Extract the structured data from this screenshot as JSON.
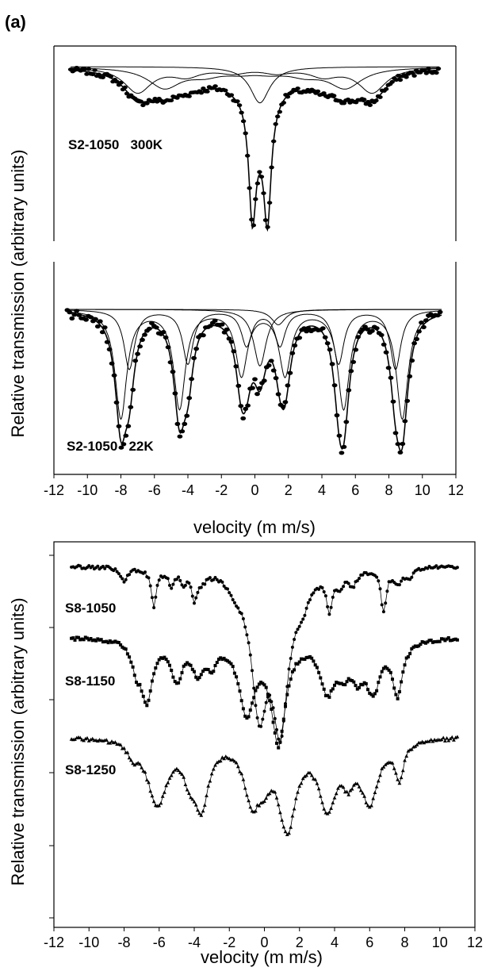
{
  "figure_label": "(a)",
  "chart_data": [
    {
      "id": "top",
      "type": "scatter",
      "ylabel": "Relative transmission (arbitrary units)",
      "xlabel": "velocity (m m/s)",
      "xlim": [
        -12,
        12
      ],
      "xticks": [
        -12,
        -10,
        -8,
        -6,
        -4,
        -2,
        0,
        2,
        4,
        6,
        8,
        10,
        12
      ],
      "yticks_labeled": false,
      "subplots": [
        {
          "id": "300K",
          "label": "S2-1050   300K",
          "label_pos": "left",
          "baseline": 1.0,
          "fit": "doublet (center 0.30, splitting 0.90, width 0.26, depth 0.155) + two broad sextets + narrow center singlet",
          "series": [
            {
              "name": "",
              "kind": "data"
            },
            {
              "name": "",
              "kind": "fit"
            }
          ]
        },
        {
          "id": "22K",
          "label": "S2-1050   22K",
          "label_pos": "left",
          "baseline": 1.0,
          "fit": "two magnetic sextets + central doublet",
          "series": [
            {
              "name": "",
              "kind": "data"
            },
            {
              "name": "",
              "kind": "fit"
            }
          ]
        }
      ]
    },
    {
      "id": "bottom",
      "type": "line",
      "ylabel": "Relative transmission (arbitrary units)",
      "xlabel": "velocity (m m/s)",
      "xlim": [
        -12,
        12
      ],
      "xticks": [
        -12,
        -10,
        -8,
        -6,
        -4,
        -2,
        0,
        2,
        4,
        6,
        8,
        10,
        12
      ],
      "yticks_labeled": false,
      "series": [
        {
          "name": "S8-1050",
          "marker": "circle"
        },
        {
          "name": "S8-1150",
          "marker": "square"
        },
        {
          "name": "S8-1250",
          "marker": "triangle"
        }
      ]
    }
  ]
}
